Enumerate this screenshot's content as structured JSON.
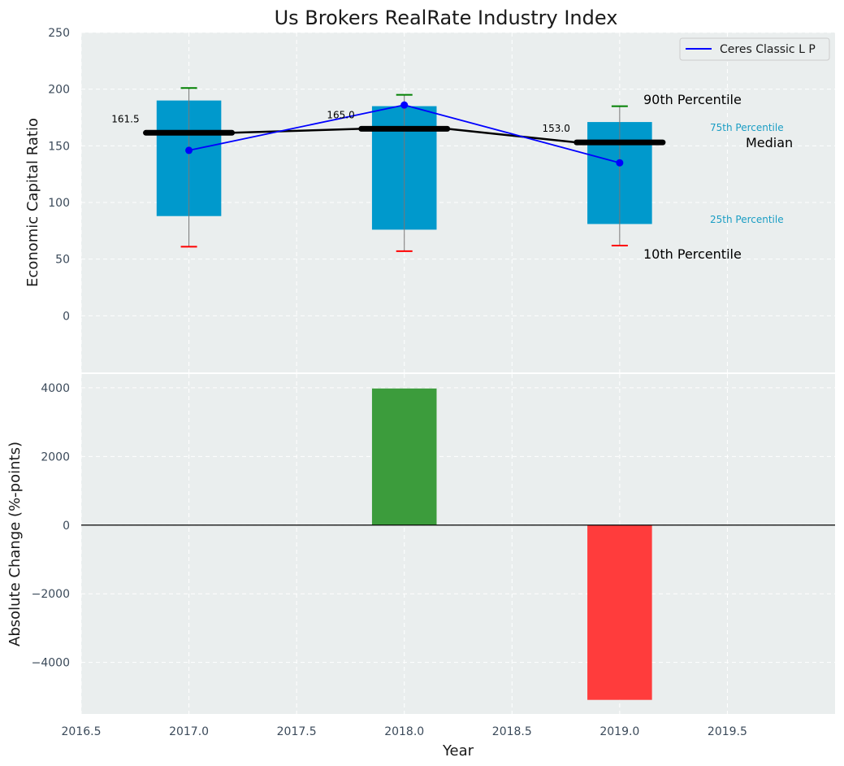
{
  "colors": {
    "panel_bg": "#eaeeee",
    "grid": "#ffffff",
    "box": "#0099cc",
    "company_line": "#0000ff",
    "median_line": "#000000",
    "p90_cap": "#008000",
    "p10_cap": "#ff0000",
    "whisker": "#777777",
    "bar_positive": "#3c9c3c",
    "bar_negative": "#ff3c3c",
    "zero_line": "#000000",
    "ann_small": "#1a9dc4"
  },
  "chart_data": [
    {
      "type": "box",
      "title": "Us Brokers RealRate Industry Index",
      "ylabel": "Economic Capital Ratio",
      "xlabel": "",
      "xlim": [
        2016.5,
        2020.0
      ],
      "ylim": [
        -50,
        250
      ],
      "yticks": [
        "0",
        "50",
        "100",
        "150",
        "200",
        "250"
      ],
      "ytick_values": [
        0,
        50,
        100,
        150,
        200,
        250
      ],
      "grid": true,
      "legend_position": "top-right",
      "years": [
        2017,
        2018,
        2019
      ],
      "p10": [
        61,
        57,
        62
      ],
      "p25": [
        88,
        76,
        81
      ],
      "median": [
        161.5,
        165.0,
        153.0
      ],
      "p75": [
        190,
        185,
        171
      ],
      "p90": [
        201,
        195,
        185
      ],
      "median_labels": [
        "161.5",
        "165.0",
        "153.0"
      ],
      "series": [
        {
          "name": "Ceres Classic L P",
          "values": [
            146,
            186,
            135
          ]
        }
      ],
      "annotations": {
        "p90": "90th Percentile",
        "p75": "75th Percentile",
        "median": "Median",
        "p25": "25th Percentile",
        "p10": "10th Percentile"
      }
    },
    {
      "type": "bar",
      "ylabel": "Absolute Change (%-points)",
      "xlabel": "Year",
      "xlim": [
        2016.5,
        2020.0
      ],
      "ylim": [
        -5500,
        4400
      ],
      "xticks": [
        "2016.5",
        "2017.0",
        "2017.5",
        "2018.0",
        "2018.5",
        "2019.0",
        "2019.5"
      ],
      "xtick_values": [
        2016.5,
        2017.0,
        2017.5,
        2018.0,
        2018.5,
        2019.0,
        2019.5
      ],
      "yticks": [
        "4000",
        "2000",
        "0",
        "−2000",
        "−4000"
      ],
      "ytick_values": [
        4000,
        2000,
        0,
        -2000,
        -4000
      ],
      "grid": true,
      "x": [
        2018,
        2019
      ],
      "values": [
        3980,
        -5090
      ]
    }
  ]
}
